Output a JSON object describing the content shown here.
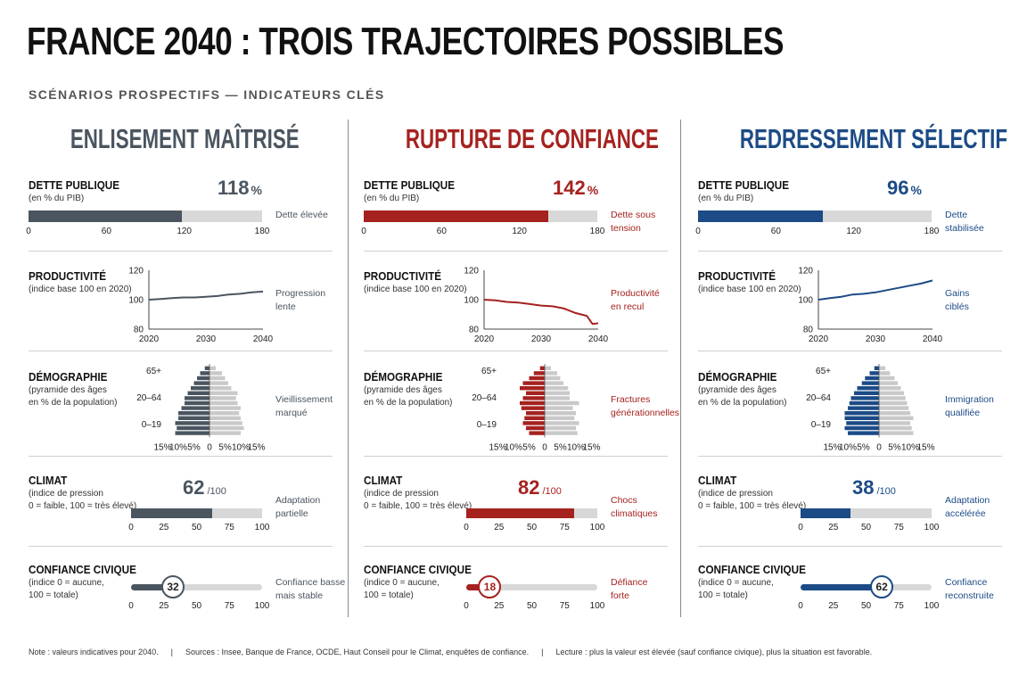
{
  "title": "FRANCE 2040 : TROIS TRAJECTOIRES POSSIBLES",
  "subtitle": "SCÉNARIOS PROSPECTIFS — INDICATEURS CLÉS",
  "labels": {
    "debt": "DETTE PUBLIQUE",
    "debt_sub": "(en % du PIB)",
    "prod": "PRODUCTIVITÉ",
    "prod_sub": "(indice base 100 en 2020)",
    "demo": "DÉMOGRAPHIE",
    "demo_sub1": "(pyramide des âges",
    "demo_sub2": "en % de la population)",
    "climate": "CLIMAT",
    "climate_sub1": "(indice de pression",
    "climate_sub2": "0 = faible, 100 = très élevé)",
    "trust": "CONFIANCE CIVIQUE",
    "trust_sub1": "(indice 0 = aucune,",
    "trust_sub2": "100 = totale)",
    "pct_unit": "%",
    "per100": "/100"
  },
  "axes": {
    "debt_ticks": [
      "0",
      "60",
      "120",
      "180"
    ],
    "idx_ticks": [
      "0",
      "25",
      "50",
      "75",
      "100"
    ],
    "prod_y_ticks": [
      "120",
      "100",
      "80"
    ],
    "prod_x_ticks": [
      "2020",
      "2030",
      "2040"
    ],
    "demo_age_ticks": [
      "65+",
      "20–64",
      "0–19"
    ],
    "demo_x_ticks": [
      "15%",
      "10%",
      "5%",
      "0",
      "5%",
      "10%",
      "15%"
    ]
  },
  "scenarios": [
    {
      "name": "ENLISEMENT MAÎTRISÉ",
      "color": "#4a5560",
      "debt_value": "118",
      "debt_note_1": "Dette élevée",
      "debt_note_2": "",
      "prod_note_1": "Progression",
      "prod_note_2": "lente",
      "demo_note_1": "Vieillissement",
      "demo_note_2": "marqué",
      "climate_value": "62",
      "climate_note_1": "Adaptation",
      "climate_note_2": "partielle",
      "trust_value": "32",
      "trust_note_1": "Confiance basse",
      "trust_note_2": "mais stable"
    },
    {
      "name": "RUPTURE DE CONFIANCE",
      "color": "#a5221f",
      "debt_value": "142",
      "debt_note_1": "Dette sous",
      "debt_note_2": "tension",
      "prod_note_1": "Productivité",
      "prod_note_2": "en recul",
      "demo_note_1": "Fractures",
      "demo_note_2": "générationnelles",
      "climate_value": "82",
      "climate_note_1": "Chocs",
      "climate_note_2": "climatiques",
      "trust_value": "18",
      "trust_note_1": "Défiance",
      "trust_note_2": "forte"
    },
    {
      "name": "REDRESSEMENT SÉLECTIF",
      "color": "#1c4b86",
      "debt_value": "96",
      "debt_note_1": "Dette",
      "debt_note_2": "stabilisée",
      "prod_note_1": "Gains",
      "prod_note_2": "ciblés",
      "demo_note_1": "Immigration",
      "demo_note_2": "qualifiée",
      "climate_value": "38",
      "climate_note_1": "Adaptation",
      "climate_note_2": "accélérée",
      "trust_value": "62",
      "trust_note_1": "Confiance",
      "trust_note_2": "reconstruite"
    }
  ],
  "footer": {
    "note": "Note : valeurs indicatives pour 2040.",
    "sources": "Sources : Insee, Banque de France, OCDE, Haut Conseil pour le Climat, enquêtes de confiance.",
    "reading": "Lecture : plus la valeur est élevée (sauf confiance civique), plus la situation est favorable.",
    "separator": "|"
  },
  "chart_data": [
    {
      "type": "bar",
      "title": "DETTE PUBLIQUE (en % du PIB)",
      "categories": [
        "ENLISEMENT MAÎTRISÉ",
        "RUPTURE DE CONFIANCE",
        "REDRESSEMENT SÉLECTIF"
      ],
      "values": [
        118,
        142,
        96
      ],
      "xlim": [
        0,
        180
      ]
    },
    {
      "type": "line",
      "title": "PRODUCTIVITÉ (indice base 100 en 2020)",
      "ylim": [
        80,
        120
      ],
      "xlim": [
        2020,
        2040
      ],
      "series": [
        {
          "name": "ENLISEMENT MAÎTRISÉ",
          "x": [
            2020,
            2022,
            2024,
            2026,
            2028,
            2030,
            2032,
            2034,
            2036,
            2038,
            2040
          ],
          "y": [
            100,
            100.5,
            101,
            101.5,
            101.5,
            102,
            102.5,
            103.5,
            104,
            105,
            105.5
          ]
        },
        {
          "name": "RUPTURE DE CONFIANCE",
          "x": [
            2020,
            2022,
            2024,
            2026,
            2028,
            2030,
            2032,
            2034,
            2036,
            2038,
            2039,
            2040
          ],
          "y": [
            100,
            99.5,
            98.5,
            98,
            97,
            96,
            95.5,
            94,
            91,
            89,
            83.5,
            84
          ]
        },
        {
          "name": "REDRESSEMENT SÉLECTIF",
          "x": [
            2020,
            2022,
            2024,
            2026,
            2028,
            2030,
            2032,
            2034,
            2036,
            2038,
            2040
          ],
          "y": [
            100,
            101,
            102,
            103.5,
            104,
            105,
            106.5,
            108,
            109.5,
            111,
            113
          ]
        }
      ]
    },
    {
      "type": "bar",
      "title": "DÉMOGRAPHIE (pyramide des âges en % de la population)",
      "categories": [
        "0–19",
        "20–64",
        "65+"
      ],
      "series": [
        {
          "name": "ENLISEMENT MAÎTRISÉ",
          "left": [
            11,
            10.5,
            11,
            10,
            10,
            9,
            8,
            8,
            7,
            6,
            5,
            4,
            3,
            1.5
          ],
          "right": [
            10,
            11,
            10.5,
            10,
            9.5,
            10,
            9,
            8.5,
            9,
            7,
            6,
            5,
            4,
            2
          ]
        },
        {
          "name": "RUPTURE DE CONFIANCE",
          "left": [
            5,
            6,
            7,
            6.5,
            6,
            7.5,
            8,
            7,
            6,
            8,
            7,
            5,
            3.5,
            1.5
          ],
          "right": [
            10.5,
            10,
            11,
            9.5,
            10,
            9,
            11,
            8,
            8,
            7.5,
            6,
            5,
            4,
            2
          ]
        },
        {
          "name": "REDRESSEMENT SÉLECTIF",
          "left": [
            10,
            11,
            10.5,
            11,
            11,
            10,
            9.5,
            9,
            8,
            7,
            5.5,
            4.5,
            3,
            1.5
          ],
          "right": [
            11,
            10.5,
            10,
            11,
            10,
            9.5,
            9,
            8.5,
            8,
            7,
            6,
            5,
            3.5,
            2
          ]
        }
      ]
    },
    {
      "type": "bar",
      "title": "CLIMAT (indice de pression 0 = faible, 100 = très élevé)",
      "categories": [
        "ENLISEMENT MAÎTRISÉ",
        "RUPTURE DE CONFIANCE",
        "REDRESSEMENT SÉLECTIF"
      ],
      "values": [
        62,
        82,
        38
      ],
      "xlim": [
        0,
        100
      ]
    },
    {
      "type": "bar",
      "title": "CONFIANCE CIVIQUE (indice 0 = aucune, 100 = totale)",
      "categories": [
        "ENLISEMENT MAÎTRISÉ",
        "RUPTURE DE CONFIANCE",
        "REDRESSEMENT SÉLECTIF"
      ],
      "values": [
        32,
        18,
        62
      ],
      "xlim": [
        0,
        100
      ]
    }
  ]
}
